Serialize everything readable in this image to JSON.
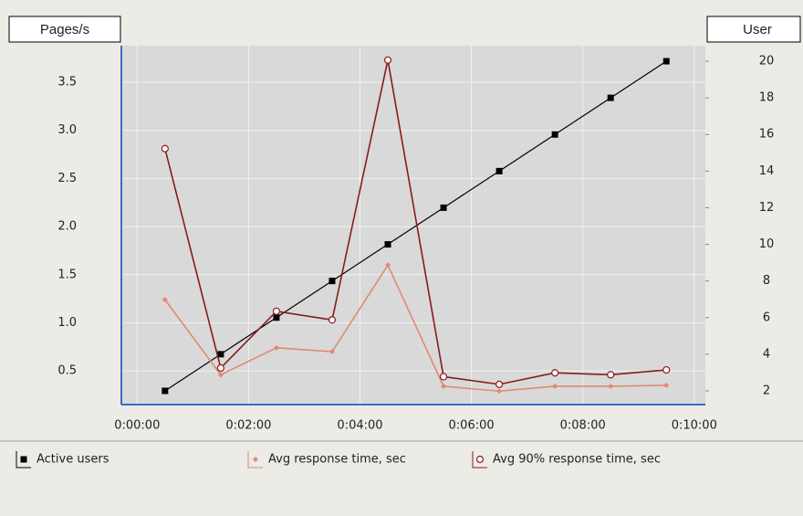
{
  "chart_data": {
    "type": "line",
    "ylabel": "Pages/s",
    "y2label": "User",
    "x": [
      30,
      90,
      150,
      210,
      270,
      330,
      390,
      450,
      510,
      570
    ],
    "xlim": [
      -17,
      612
    ],
    "xticks": [
      {
        "value": 0,
        "label": "0:00:00"
      },
      {
        "value": 120,
        "label": "0:02:00"
      },
      {
        "value": 240,
        "label": "0:04:00"
      },
      {
        "value": 360,
        "label": "0:06:00"
      },
      {
        "value": 480,
        "label": "0:08:00"
      },
      {
        "value": 600,
        "label": "0:10:00"
      }
    ],
    "ylim": [
      0.15,
      3.88
    ],
    "yticks": [
      0.5,
      {
        "value": 1,
        "label": "1.0"
      },
      1.5,
      {
        "value": 2,
        "label": "2.0"
      },
      2.5,
      {
        "value": 3,
        "label": "3.0"
      },
      3.5
    ],
    "y2lim": [
      1.25,
      20.85
    ],
    "y2ticks": [
      2,
      4,
      6,
      8,
      10,
      12,
      14,
      16,
      18,
      20
    ],
    "grid": true,
    "series": [
      {
        "name": "Active users",
        "color": "#000000",
        "marker": "square",
        "axis": "y2",
        "values": [
          2,
          4,
          6,
          8,
          10,
          12,
          14,
          16,
          18,
          20
        ]
      },
      {
        "name": "Avg response time, sec",
        "color": "#e08a70",
        "marker": "diamond",
        "values": [
          1.24,
          0.46,
          0.74,
          0.7,
          1.6,
          0.34,
          0.29,
          0.34,
          0.34,
          0.35
        ]
      },
      {
        "name": "Avg 90% response time, sec",
        "color": "#8b1a1a",
        "marker": "circle",
        "values": [
          2.81,
          0.53,
          1.12,
          1.03,
          3.73,
          0.44,
          0.36,
          0.48,
          0.46,
          0.51
        ]
      }
    ]
  }
}
